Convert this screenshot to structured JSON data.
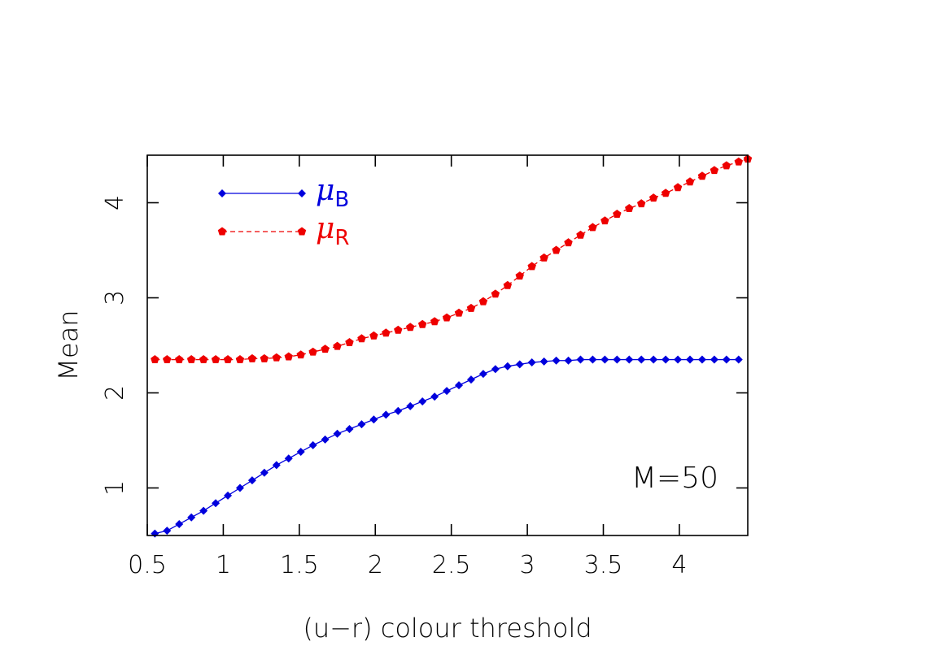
{
  "chart_data": {
    "type": "line",
    "xlabel": "(u−r) colour threshold",
    "ylabel": "Mean",
    "xlim": [
      0.5,
      4.45
    ],
    "ylim": [
      0.5,
      4.5
    ],
    "xticks": [
      0.5,
      1,
      1.5,
      2,
      2.5,
      3,
      3.5,
      4
    ],
    "xtick_labels": [
      "0.5",
      "1",
      "1.5",
      "2",
      "2.5",
      "3",
      "3.5",
      "4"
    ],
    "yticks": [
      1,
      2,
      3,
      4
    ],
    "ytick_labels": [
      "1",
      "2",
      "3",
      "4"
    ],
    "annotation": "M=50",
    "legend_position": "top-left",
    "series": [
      {
        "name": "μ",
        "subscript": "B",
        "color": "#0000dd",
        "line_style": "solid",
        "marker": "diamond",
        "x": [
          0.55,
          0.63,
          0.71,
          0.79,
          0.87,
          0.95,
          1.03,
          1.11,
          1.19,
          1.27,
          1.35,
          1.43,
          1.51,
          1.59,
          1.67,
          1.75,
          1.83,
          1.91,
          1.99,
          2.07,
          2.15,
          2.23,
          2.31,
          2.39,
          2.47,
          2.55,
          2.63,
          2.71,
          2.79,
          2.87,
          2.95,
          3.03,
          3.11,
          3.19,
          3.27,
          3.35,
          3.43,
          3.51,
          3.59,
          3.67,
          3.75,
          3.83,
          3.91,
          3.99,
          4.07,
          4.15,
          4.23,
          4.31,
          4.39
        ],
        "y": [
          0.52,
          0.55,
          0.62,
          0.69,
          0.76,
          0.84,
          0.92,
          1.0,
          1.08,
          1.16,
          1.24,
          1.31,
          1.38,
          1.45,
          1.51,
          1.57,
          1.62,
          1.67,
          1.72,
          1.77,
          1.81,
          1.86,
          1.91,
          1.96,
          2.02,
          2.08,
          2.14,
          2.2,
          2.25,
          2.28,
          2.3,
          2.32,
          2.33,
          2.34,
          2.34,
          2.35,
          2.35,
          2.35,
          2.35,
          2.35,
          2.35,
          2.35,
          2.35,
          2.35,
          2.35,
          2.35,
          2.35,
          2.35,
          2.35
        ]
      },
      {
        "name": "μ",
        "subscript": "R",
        "color": "#ee0000",
        "line_style": "dashed",
        "marker": "pentagon",
        "x": [
          0.55,
          0.63,
          0.71,
          0.79,
          0.87,
          0.95,
          1.03,
          1.11,
          1.19,
          1.27,
          1.35,
          1.43,
          1.51,
          1.59,
          1.67,
          1.75,
          1.83,
          1.91,
          1.99,
          2.07,
          2.15,
          2.23,
          2.31,
          2.39,
          2.47,
          2.55,
          2.63,
          2.71,
          2.79,
          2.87,
          2.95,
          3.03,
          3.11,
          3.19,
          3.27,
          3.35,
          3.43,
          3.51,
          3.59,
          3.67,
          3.75,
          3.83,
          3.91,
          3.99,
          4.07,
          4.15,
          4.23,
          4.31,
          4.39,
          4.45
        ],
        "y": [
          2.35,
          2.35,
          2.35,
          2.35,
          2.35,
          2.35,
          2.35,
          2.35,
          2.36,
          2.36,
          2.37,
          2.38,
          2.4,
          2.43,
          2.46,
          2.49,
          2.53,
          2.57,
          2.6,
          2.63,
          2.66,
          2.69,
          2.72,
          2.75,
          2.79,
          2.84,
          2.89,
          2.96,
          3.04,
          3.13,
          3.23,
          3.33,
          3.42,
          3.5,
          3.58,
          3.66,
          3.74,
          3.81,
          3.88,
          3.94,
          3.99,
          4.05,
          4.1,
          4.16,
          4.22,
          4.28,
          4.34,
          4.39,
          4.43,
          4.46
        ]
      }
    ]
  }
}
